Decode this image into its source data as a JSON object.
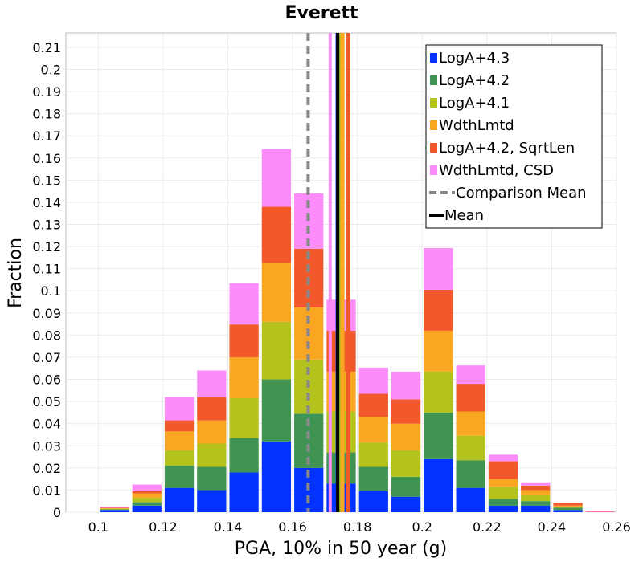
{
  "chart_data": {
    "type": "bar",
    "stacked": true,
    "title": "Everett",
    "xlabel": "PGA, 10% in 50 year (g)",
    "ylabel": "Fraction",
    "xlim": [
      0.09,
      0.26
    ],
    "ylim": [
      0,
      0.2165
    ],
    "x_ticks": [
      0.1,
      0.12,
      0.14,
      0.16,
      0.18,
      0.2,
      0.22,
      0.24,
      0.26
    ],
    "y_ticks": [
      0,
      0.01,
      0.02,
      0.03,
      0.04,
      0.05,
      0.06,
      0.07,
      0.08,
      0.09,
      0.1,
      0.11,
      0.12,
      0.13,
      0.14,
      0.15,
      0.16,
      0.17,
      0.18,
      0.19,
      0.2,
      0.21
    ],
    "bin_width": 0.01,
    "bin_centers": [
      0.105,
      0.115,
      0.125,
      0.135,
      0.145,
      0.155,
      0.165,
      0.175,
      0.185,
      0.195,
      0.205,
      0.215,
      0.225,
      0.235,
      0.245,
      0.255
    ],
    "grid": true,
    "legend_position": "top-right",
    "series": [
      {
        "name": "LogA+4.3",
        "color": "#0433ff",
        "values": [
          0.001,
          0.003,
          0.011,
          0.01,
          0.018,
          0.032,
          0.02,
          0.013,
          0.0095,
          0.007,
          0.024,
          0.011,
          0.003,
          0.003,
          0.001,
          0.0
        ]
      },
      {
        "name": "LogA+4.2",
        "color": "#3f9452",
        "values": [
          0.0003,
          0.0015,
          0.01,
          0.0105,
          0.0155,
          0.028,
          0.0245,
          0.014,
          0.011,
          0.009,
          0.021,
          0.0125,
          0.003,
          0.002,
          0.001,
          0.0
        ]
      },
      {
        "name": "LogA+4.1",
        "color": "#b4c21e",
        "values": [
          0.0003,
          0.002,
          0.007,
          0.0105,
          0.018,
          0.026,
          0.0245,
          0.0185,
          0.011,
          0.012,
          0.0185,
          0.011,
          0.0055,
          0.003,
          0.0005,
          0.0
        ]
      },
      {
        "name": "WdthLmtd",
        "color": "#f9a623",
        "values": [
          0.0002,
          0.002,
          0.0085,
          0.0105,
          0.0185,
          0.0265,
          0.0235,
          0.018,
          0.0115,
          0.012,
          0.0185,
          0.011,
          0.0035,
          0.002,
          0.0005,
          0.0
        ]
      },
      {
        "name": "LogA+4.2, SqrtLen",
        "color": "#f1582a",
        "values": [
          0.0002,
          0.001,
          0.005,
          0.0105,
          0.0148,
          0.0255,
          0.0265,
          0.0185,
          0.0105,
          0.011,
          0.0185,
          0.0125,
          0.008,
          0.002,
          0.0012,
          0.0002
        ]
      },
      {
        "name": "WdthLmtd, CSD",
        "color": "#fc8cf9",
        "values": [
          0.0005,
          0.003,
          0.0105,
          0.012,
          0.0187,
          0.026,
          0.025,
          0.014,
          0.0118,
          0.0125,
          0.0188,
          0.0083,
          0.003,
          0.0015,
          0.0,
          0.0002
        ]
      }
    ],
    "mean_lines": [
      {
        "name": "LogA+4.3",
        "x": 0.1739,
        "color": "#0433ff",
        "width": 5
      },
      {
        "name": "LogA+4.2",
        "x": 0.1745,
        "color": "#3f9452",
        "width": 5
      },
      {
        "name": "LogA+4.1",
        "x": 0.1751,
        "color": "#b4c21e",
        "width": 5
      },
      {
        "name": "WdthLmtd",
        "x": 0.1754,
        "color": "#f9a623",
        "width": 5
      },
      {
        "name": "LogA+4.2, SqrtLen",
        "x": 0.1772,
        "color": "#f1582a",
        "width": 5
      },
      {
        "name": "WdthLmtd, CSD",
        "x": 0.1716,
        "color": "#fc8cf9",
        "width": 4
      },
      {
        "name": "Mean",
        "x": 0.1739,
        "color": "#000000",
        "width": 4
      }
    ],
    "comparison_mean": {
      "name": "Comparison Mean",
      "x": 0.1648,
      "color": "#888888"
    },
    "legend": [
      {
        "label": "LogA+4.3",
        "kind": "box",
        "color": "#0433ff"
      },
      {
        "label": "LogA+4.2",
        "kind": "box",
        "color": "#3f9452"
      },
      {
        "label": "LogA+4.1",
        "kind": "box",
        "color": "#b4c21e"
      },
      {
        "label": "WdthLmtd",
        "kind": "box",
        "color": "#f9a623"
      },
      {
        "label": "LogA+4.2, SqrtLen",
        "kind": "box",
        "color": "#f1582a"
      },
      {
        "label": "WdthLmtd, CSD",
        "kind": "box",
        "color": "#fc8cf9"
      },
      {
        "label": "Comparison Mean",
        "kind": "dashed",
        "color": "#888888"
      },
      {
        "label": "Mean",
        "kind": "line",
        "color": "#000000"
      }
    ]
  }
}
